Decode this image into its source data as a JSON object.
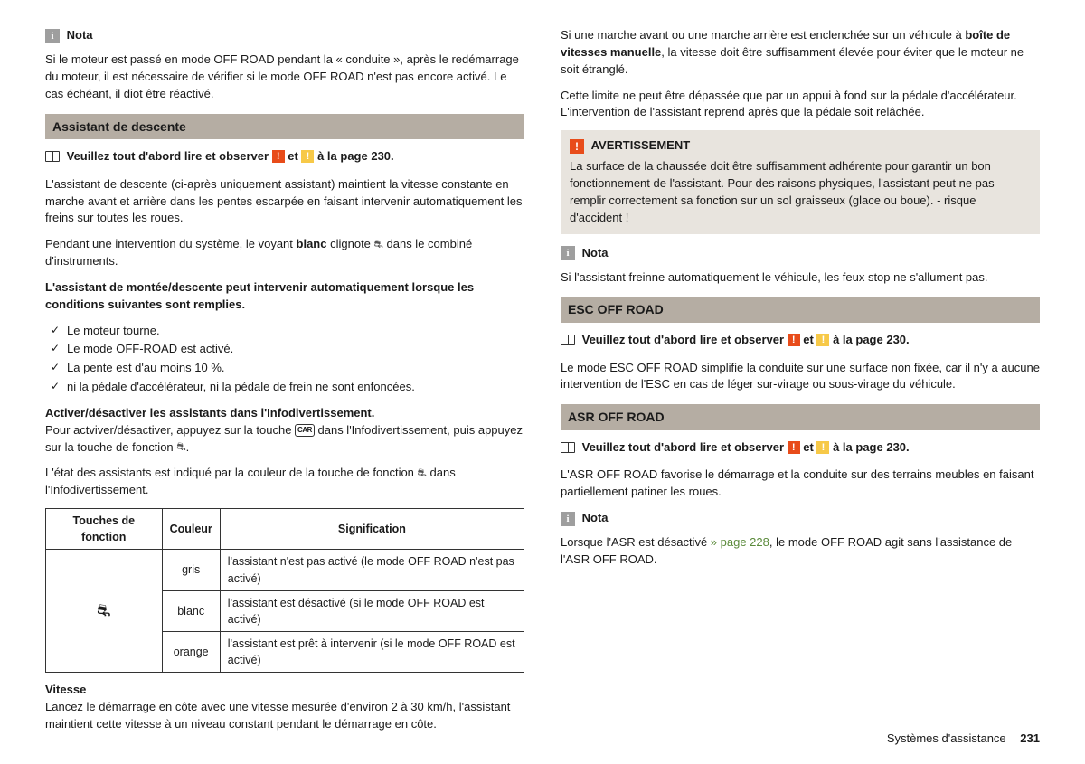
{
  "left": {
    "nota1": {
      "label": "Nota",
      "text": "Si le moteur est passé en mode OFF ROAD pendant la « conduite », après le redémarrage du moteur, il est nécessaire de vérifier si le mode OFF ROAD n'est pas encore activé. Le cas échéant, il diot être réactivé."
    },
    "section1": "Assistant de descente",
    "readfirst_prefix": "Veuillez tout d'abord lire et observer ",
    "readfirst_mid": " et ",
    "readfirst_suffix": " à la page 230.",
    "p1": "L'assistant de descente (ci-après uniquement assistant) maintient la vitesse constante en marche avant et arrière dans les pentes escarpée en faisant intervenir automatiquement les freins sur toutes les roues.",
    "p2a": "Pendant une intervention du système, le voyant ",
    "p2b": "blanc",
    "p2c": " clignote ",
    "p2d": " dans le combiné d'instruments.",
    "p3": "L'assistant de montée/descente peut intervenir automatiquement lorsque les conditions suivantes sont remplies.",
    "bullets": [
      "Le moteur tourne.",
      "Le mode OFF-ROAD est activé.",
      "La pente est d'au moins 10 %.",
      "ni la pédale d'accélérateur, ni la pédale de frein ne sont enfoncées."
    ],
    "h4": "Activer/désactiver les assistants dans l'Infodivertissement.",
    "p4a": "Pour actviver/désactiver, appuyez sur la touche ",
    "p4b": " dans l'Infodivertissement, puis appuyez sur la touche de fonction ",
    "p4c": ".",
    "p5a": "L'état des assistants est indiqué par la couleur de la touche de fonction ",
    "p5b": " dans l'Infodivertissement.",
    "table": {
      "headers": [
        "Touches de fonction",
        "Couleur",
        "Signification"
      ],
      "rows": [
        {
          "color": "gris",
          "meaning": "l'assistant n'est pas activé (le mode OFF ROAD n'est pas activé)"
        },
        {
          "color": "blanc",
          "meaning": "l'assistant est désactivé (si le mode OFF ROAD est activé)"
        },
        {
          "color": "orange",
          "meaning": "l'assistant est prêt à intervenir (si le mode OFF ROAD est activé)"
        }
      ]
    },
    "h5": "Vitesse",
    "p6": "Lancez le démarrage en côte avec une vitesse mesurée d'environ 2 à 30 km/h, l'assistant maintient cette vitesse à un niveau constant pendant le démarrage en côte."
  },
  "right": {
    "p1a": "Si une marche avant ou une marche arrière est enclenchée sur un véhicule à ",
    "p1b": "boîte de vitesses manuelle",
    "p1c": ", la vitesse doit être suffisamment élevée pour éviter que le moteur ne soit étranglé.",
    "p2": "Cette limite ne peut être dépassée que par un appui à fond sur la pédale d'accélérateur. L'intervention de l'assistant reprend après que la pédale soit relâchée.",
    "warn": {
      "label": "AVERTISSEMENT",
      "text": "La surface de la chaussée doit être suffisamment adhérente pour garantir un bon fonctionnement de l'assistant. Pour des raisons physiques, l'assistant peut ne pas remplir correctement sa fonction sur un sol graisseux (glace ou boue). - risque d'accident !"
    },
    "nota2": {
      "label": "Nota",
      "text": "Si l'assistant freinne automatiquement le véhicule, les feux stop ne s'allument pas."
    },
    "section2": "ESC OFF ROAD",
    "p3": "Le mode ESC OFF ROAD simplifie la conduite sur une surface non fixée, car il n'y a aucune intervention de l'ESC en cas de léger sur-virage ou sous-virage du véhicule.",
    "section3": "ASR OFF ROAD",
    "p4": "L'ASR OFF ROAD favorise le démarrage et la conduite sur des terrains meubles en faisant partiellement patiner les roues.",
    "nota3": {
      "label": "Nota",
      "t1": "Lorsque l'ASR est désactivé ",
      "link": "» page 228",
      "t2": ", le mode OFF ROAD agit sans l'assistance de l'ASR OFF ROAD."
    }
  },
  "footer": {
    "section": "Systèmes d'assistance",
    "page": "231"
  },
  "labels": {
    "car": "CAR"
  }
}
